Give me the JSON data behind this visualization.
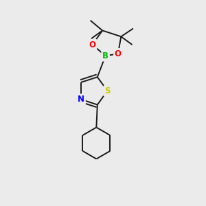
{
  "background_color": "#ebebeb",
  "bond_color": "#1a1a1a",
  "atom_colors": {
    "N": "#0000ff",
    "S": "#cccc00",
    "O": "#ff0000",
    "B": "#00bb00"
  },
  "figsize": [
    3.0,
    3.0
  ],
  "dpi": 100
}
